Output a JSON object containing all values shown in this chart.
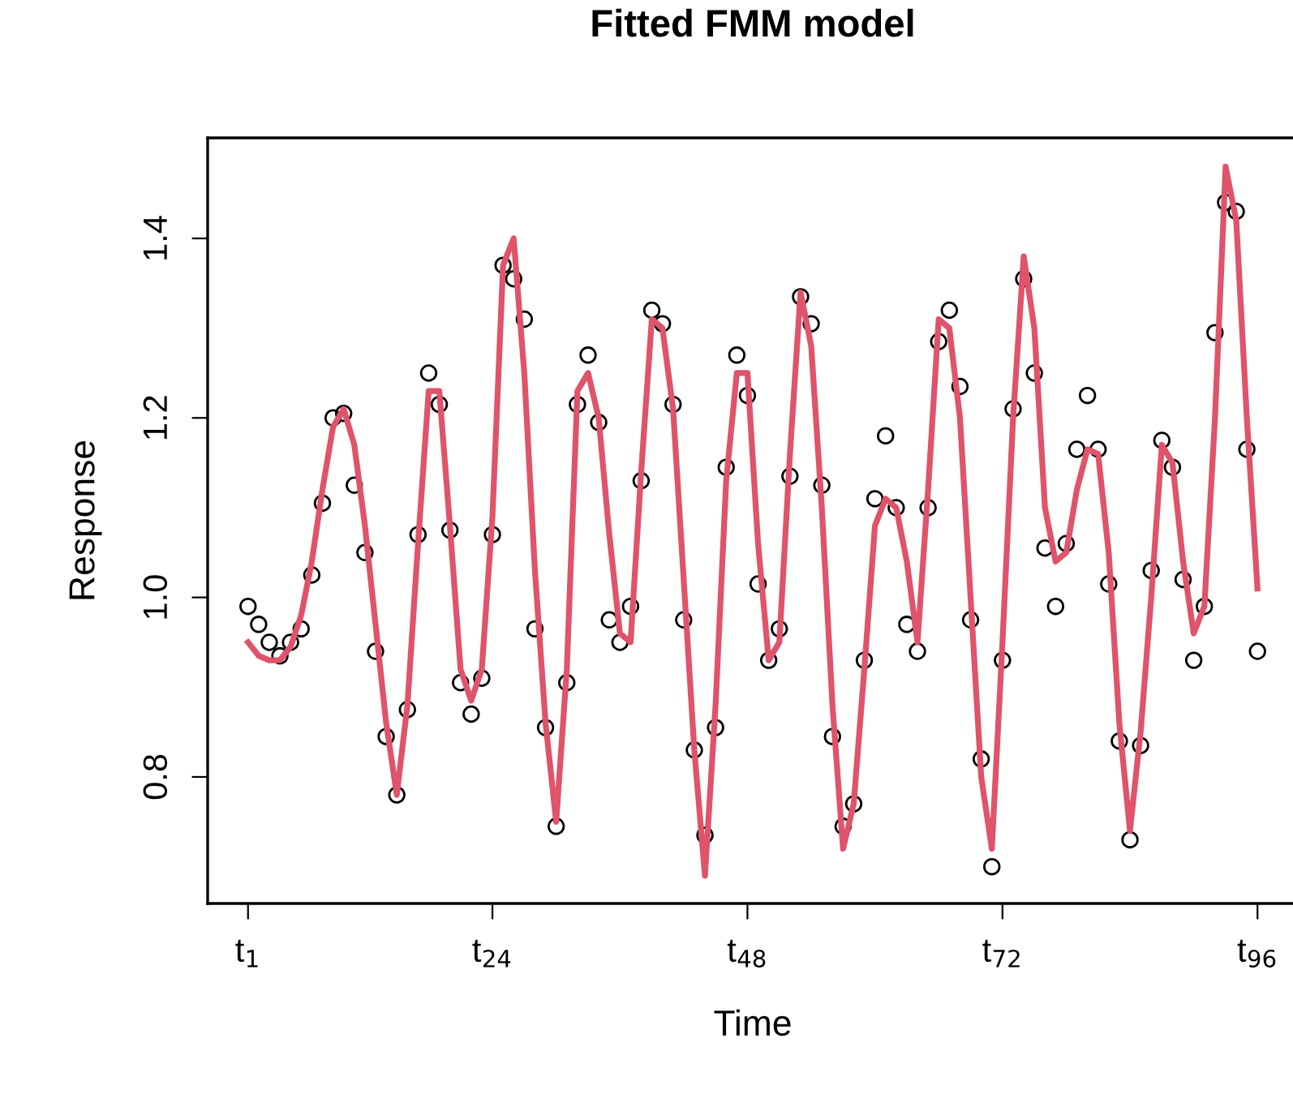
{
  "chart_data": {
    "type": "scatter",
    "title": "Fitted FMM model",
    "xlabel": "Time",
    "ylabel": "Response",
    "xlim": [
      -2.8,
      99.8
    ],
    "ylim": [
      0.659,
      1.512
    ],
    "xticks": [
      {
        "value": 1,
        "label": "t$_{1}$"
      },
      {
        "value": 24,
        "label": "t$_{24}$"
      },
      {
        "value": 48,
        "label": "t$_{48}$"
      },
      {
        "value": 72,
        "label": "t$_{72}$"
      },
      {
        "value": 96,
        "label": "t$_{96}$"
      }
    ],
    "yticks": [
      {
        "value": 0.8,
        "label": "0.8"
      },
      {
        "value": 1.0,
        "label": "1.0"
      },
      {
        "value": 1.2,
        "label": "1.2"
      },
      {
        "value": 1.4,
        "label": "1.4"
      }
    ],
    "grid": false,
    "legend": false,
    "x": [
      1,
      2,
      3,
      4,
      5,
      6,
      7,
      8,
      9,
      10,
      11,
      12,
      13,
      14,
      15,
      16,
      17,
      18,
      19,
      20,
      21,
      22,
      23,
      24,
      25,
      26,
      27,
      28,
      29,
      30,
      31,
      32,
      33,
      34,
      35,
      36,
      37,
      38,
      39,
      40,
      41,
      42,
      43,
      44,
      45,
      46,
      47,
      48,
      49,
      50,
      51,
      52,
      53,
      54,
      55,
      56,
      57,
      58,
      59,
      60,
      61,
      62,
      63,
      64,
      65,
      66,
      67,
      68,
      69,
      70,
      71,
      72,
      73,
      74,
      75,
      76,
      77,
      78,
      79,
      80,
      81,
      82,
      83,
      84,
      85,
      86,
      87,
      88,
      89,
      90,
      91,
      92,
      93,
      94,
      95,
      96
    ],
    "series": [
      {
        "color": "#000000",
        "marker": "circle",
        "values": [
          0.99,
          0.97,
          0.95,
          0.935,
          0.95,
          0.965,
          1.025,
          1.105,
          1.2,
          1.205,
          1.125,
          1.05,
          0.94,
          0.845,
          0.78,
          0.875,
          1.07,
          1.25,
          1.215,
          1.075,
          0.905,
          0.87,
          0.91,
          1.07,
          1.37,
          1.355,
          1.31,
          0.965,
          0.855,
          0.745,
          0.905,
          1.215,
          1.27,
          1.195,
          0.975,
          0.95,
          0.99,
          1.13,
          1.32,
          1.305,
          1.215,
          0.975,
          0.83,
          0.735,
          0.855,
          1.145,
          1.27,
          1.225,
          1.015,
          0.93,
          0.965,
          1.135,
          1.335,
          1.305,
          1.125,
          0.845,
          0.745,
          0.77,
          0.93,
          1.11,
          1.18,
          1.1,
          0.97,
          0.94,
          1.1,
          1.285,
          1.32,
          1.235,
          0.975,
          0.82,
          0.7,
          0.93,
          1.21,
          1.355,
          1.25,
          1.055,
          0.99,
          1.06,
          1.165,
          1.225,
          1.165,
          1.015,
          0.84,
          0.73,
          0.835,
          1.03,
          1.175,
          1.145,
          1.02,
          0.93,
          0.99,
          1.295,
          1.44,
          1.43,
          1.165,
          0.94
        ]
      },
      {
        "type": "line",
        "color": "#df536b",
        "marker": "none",
        "line_style": "solid",
        "values": [
          0.95,
          0.935,
          0.93,
          0.93,
          0.945,
          0.98,
          1.04,
          1.12,
          1.19,
          1.21,
          1.17,
          1.08,
          0.97,
          0.86,
          0.78,
          0.88,
          1.06,
          1.23,
          1.23,
          1.08,
          0.92,
          0.885,
          0.92,
          1.09,
          1.37,
          1.4,
          1.25,
          1.03,
          0.86,
          0.75,
          0.92,
          1.23,
          1.25,
          1.2,
          1.07,
          0.96,
          0.95,
          1.14,
          1.31,
          1.3,
          1.21,
          1.02,
          0.83,
          0.69,
          0.88,
          1.13,
          1.25,
          1.25,
          1.06,
          0.93,
          0.95,
          1.16,
          1.34,
          1.28,
          1.1,
          0.88,
          0.72,
          0.77,
          0.92,
          1.08,
          1.11,
          1.1,
          1.04,
          0.95,
          1.12,
          1.31,
          1.3,
          1.2,
          1.0,
          0.8,
          0.72,
          0.95,
          1.2,
          1.38,
          1.3,
          1.1,
          1.04,
          1.05,
          1.12,
          1.165,
          1.16,
          1.05,
          0.86,
          0.74,
          0.85,
          1.0,
          1.17,
          1.15,
          1.04,
          0.96,
          0.99,
          1.2,
          1.48,
          1.42,
          1.2,
          1.01
        ]
      }
    ]
  }
}
